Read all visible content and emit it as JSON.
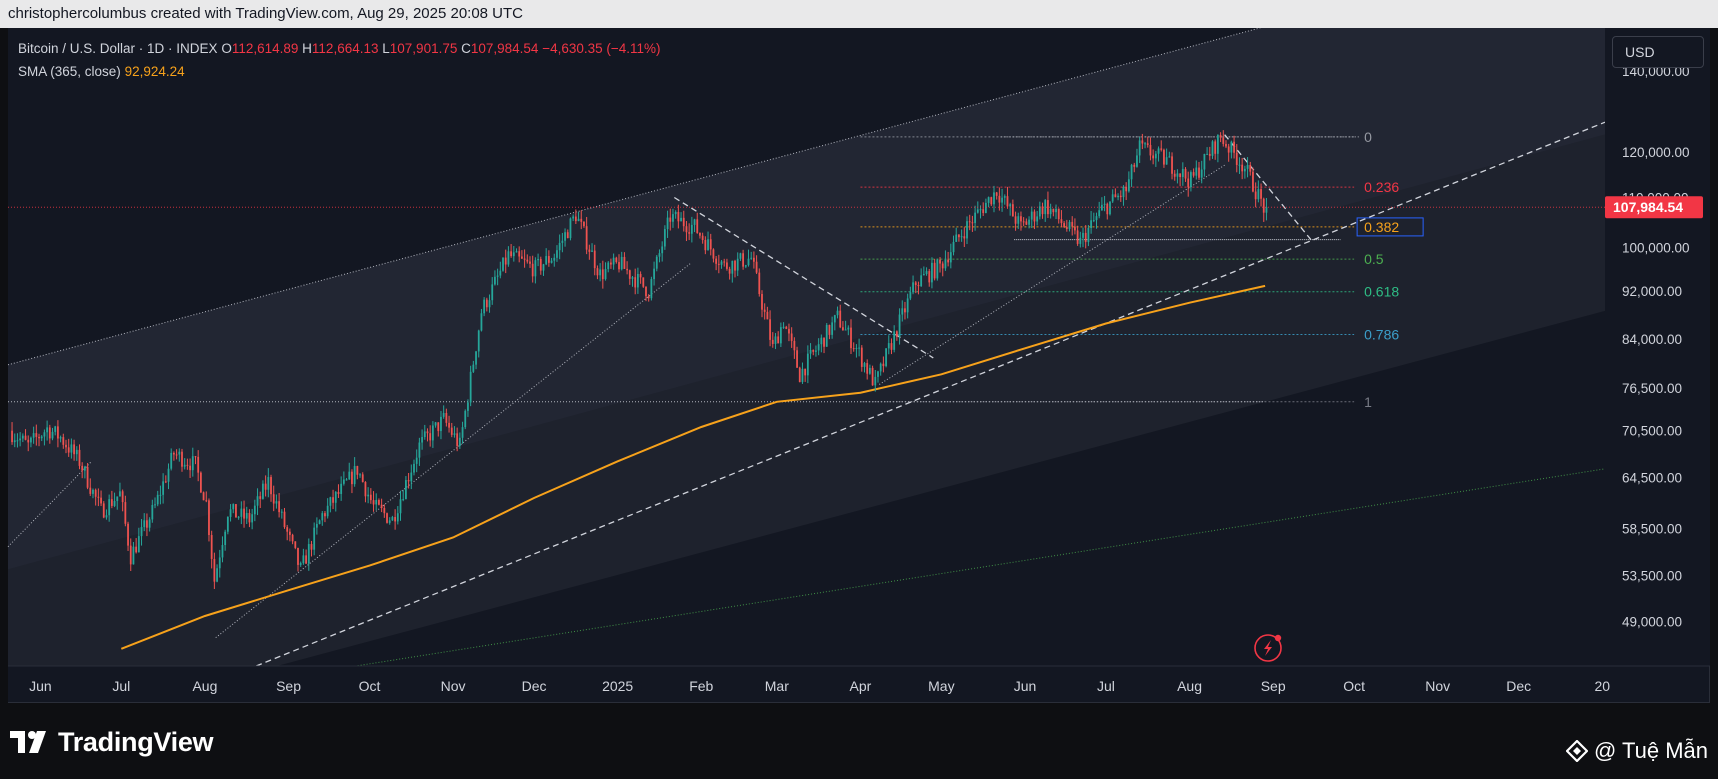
{
  "header": {
    "credit": "christophercolumbus created with TradingView.com, Aug 29, 2025 20:08 UTC"
  },
  "legend": {
    "symbol": "Bitcoin / U.S. Dollar · 1D · INDEX",
    "open_label": "O",
    "open": "112,614.89",
    "high_label": "H",
    "high": "112,664.13",
    "low_label": "L",
    "low": "107,901.75",
    "close_label": "C",
    "close": "107,984.54",
    "change": "−4,630.35 (−4.11%)",
    "sma_label": "SMA (365, close)",
    "sma_value": "92,924.24"
  },
  "currency_button": "USD",
  "colors": {
    "background": "#131722",
    "up": "#26a69a",
    "down": "#ef5350",
    "sma": "#f7a21b",
    "price_tag": "#f23645",
    "channel": "#1e222d",
    "channel_mid": "#262a38"
  },
  "chart_data": {
    "type": "candlestick",
    "title": "Bitcoin / U.S. Dollar · 1D · INDEX",
    "ylim": [
      45000,
      152000
    ],
    "y_scale": "log",
    "y_ticks": [
      {
        "value": 140000,
        "label": "140,000.00"
      },
      {
        "value": 120000,
        "label": "120,000.00"
      },
      {
        "value": 110000,
        "label": "110,000.00"
      },
      {
        "value": 100000,
        "label": "100,000.00"
      },
      {
        "value": 92000,
        "label": "92,000.00"
      },
      {
        "value": 84000,
        "label": "84,000.00"
      },
      {
        "value": 76500,
        "label": "76,500.00"
      },
      {
        "value": 70500,
        "label": "70,500.00"
      },
      {
        "value": 64500,
        "label": "64,500.00"
      },
      {
        "value": 58500,
        "label": "58,500.00"
      },
      {
        "value": 53500,
        "label": "53,500.00"
      },
      {
        "value": 49000,
        "label": "49,000.00"
      }
    ],
    "x_labels": [
      {
        "date": "2024-06-01",
        "label": "Jun"
      },
      {
        "date": "2024-07-01",
        "label": "Jul"
      },
      {
        "date": "2024-08-01",
        "label": "Aug"
      },
      {
        "date": "2024-09-01",
        "label": "Sep"
      },
      {
        "date": "2024-10-01",
        "label": "Oct"
      },
      {
        "date": "2024-11-01",
        "label": "Nov"
      },
      {
        "date": "2024-12-01",
        "label": "Dec"
      },
      {
        "date": "2025-01-01",
        "label": "2025"
      },
      {
        "date": "2025-02-01",
        "label": "Feb"
      },
      {
        "date": "2025-03-01",
        "label": "Mar"
      },
      {
        "date": "2025-04-01",
        "label": "Apr"
      },
      {
        "date": "2025-05-01",
        "label": "May"
      },
      {
        "date": "2025-06-01",
        "label": "Jun"
      },
      {
        "date": "2025-07-01",
        "label": "Jul"
      },
      {
        "date": "2025-08-01",
        "label": "Aug"
      },
      {
        "date": "2025-09-01",
        "label": "Sep"
      },
      {
        "date": "2025-10-01",
        "label": "Oct"
      },
      {
        "date": "2025-11-01",
        "label": "Nov"
      },
      {
        "date": "2025-12-01",
        "label": "Dec"
      },
      {
        "date": "2026-01-01",
        "label": "20"
      }
    ],
    "last_price": {
      "value": 107984.54,
      "label": "107,984.54"
    },
    "price_path": [
      [
        "2024-05-21",
        70500
      ],
      [
        "2024-05-28",
        68500
      ],
      [
        "2024-06-04",
        70800
      ],
      [
        "2024-06-09",
        69600
      ],
      [
        "2024-06-16",
        66500
      ],
      [
        "2024-06-24",
        60500
      ],
      [
        "2024-07-01",
        62500
      ],
      [
        "2024-07-05",
        55500
      ],
      [
        "2024-07-14",
        61000
      ],
      [
        "2024-07-21",
        67500
      ],
      [
        "2024-07-29",
        66000
      ],
      [
        "2024-08-02",
        61500
      ],
      [
        "2024-08-05",
        53000
      ],
      [
        "2024-08-10",
        60500
      ],
      [
        "2024-08-18",
        59500
      ],
      [
        "2024-08-25",
        64000
      ],
      [
        "2024-09-06",
        54000
      ],
      [
        "2024-09-14",
        60000
      ],
      [
        "2024-09-27",
        65500
      ],
      [
        "2024-10-03",
        61000
      ],
      [
        "2024-10-10",
        59500
      ],
      [
        "2024-10-20",
        68500
      ],
      [
        "2024-10-29",
        72000
      ],
      [
        "2024-11-04",
        68500
      ],
      [
        "2024-11-12",
        88500
      ],
      [
        "2024-11-22",
        98500
      ],
      [
        "2024-12-02",
        96000
      ],
      [
        "2024-12-09",
        98500
      ],
      [
        "2024-12-17",
        106500
      ],
      [
        "2024-12-26",
        95000
      ],
      [
        "2025-01-02",
        97000
      ],
      [
        "2025-01-13",
        92000
      ],
      [
        "2025-01-21",
        106000
      ],
      [
        "2025-01-30",
        104000
      ],
      [
        "2025-02-10",
        96500
      ],
      [
        "2025-02-20",
        98000
      ],
      [
        "2025-02-28",
        82500
      ],
      [
        "2025-03-04",
        87000
      ],
      [
        "2025-03-10",
        78500
      ],
      [
        "2025-03-24",
        87500
      ],
      [
        "2025-03-31",
        82500
      ],
      [
        "2025-04-07",
        77000
      ],
      [
        "2025-04-14",
        84500
      ],
      [
        "2025-04-22",
        93500
      ],
      [
        "2025-05-01",
        96500
      ],
      [
        "2025-05-10",
        103500
      ],
      [
        "2025-05-22",
        111500
      ],
      [
        "2025-05-31",
        104000
      ],
      [
        "2025-06-09",
        108500
      ],
      [
        "2025-06-22",
        101000
      ],
      [
        "2025-06-30",
        107500
      ],
      [
        "2025-07-09",
        111500
      ],
      [
        "2025-07-14",
        121000
      ],
      [
        "2025-07-24",
        118000
      ],
      [
        "2025-08-02",
        113500
      ],
      [
        "2025-08-13",
        123500
      ],
      [
        "2025-08-22",
        116500
      ],
      [
        "2025-08-29",
        107985
      ]
    ],
    "series": [
      {
        "name": "SMA (365, close)",
        "points": [
          [
            "2024-07-01",
            46500
          ],
          [
            "2024-08-01",
            49500
          ],
          [
            "2024-09-01",
            52000
          ],
          [
            "2024-10-01",
            54500
          ],
          [
            "2024-11-01",
            57500
          ],
          [
            "2024-12-01",
            62000
          ],
          [
            "2025-01-01",
            66500
          ],
          [
            "2025-02-01",
            71000
          ],
          [
            "2025-03-01",
            74500
          ],
          [
            "2025-04-01",
            75800
          ],
          [
            "2025-05-01",
            78500
          ],
          [
            "2025-06-01",
            82500
          ],
          [
            "2025-07-01",
            86500
          ],
          [
            "2025-08-01",
            90000
          ],
          [
            "2025-08-29",
            92924
          ]
        ]
      }
    ],
    "fibonacci": [
      {
        "level": "0",
        "price": 123500,
        "color": "#9598a1"
      },
      {
        "level": "0.236",
        "price": 112200,
        "color": "#f23645"
      },
      {
        "level": "0.382",
        "price": 104000,
        "color": "#f7a21b"
      },
      {
        "level": "0.5",
        "price": 97800,
        "color": "#4caf50"
      },
      {
        "level": "0.618",
        "price": 91900,
        "color": "#2ebd85"
      },
      {
        "level": "0.786",
        "price": 84700,
        "color": "#3b9ec9"
      },
      {
        "level": "1",
        "price": 74500,
        "color": "#787b86"
      }
    ]
  }
}
